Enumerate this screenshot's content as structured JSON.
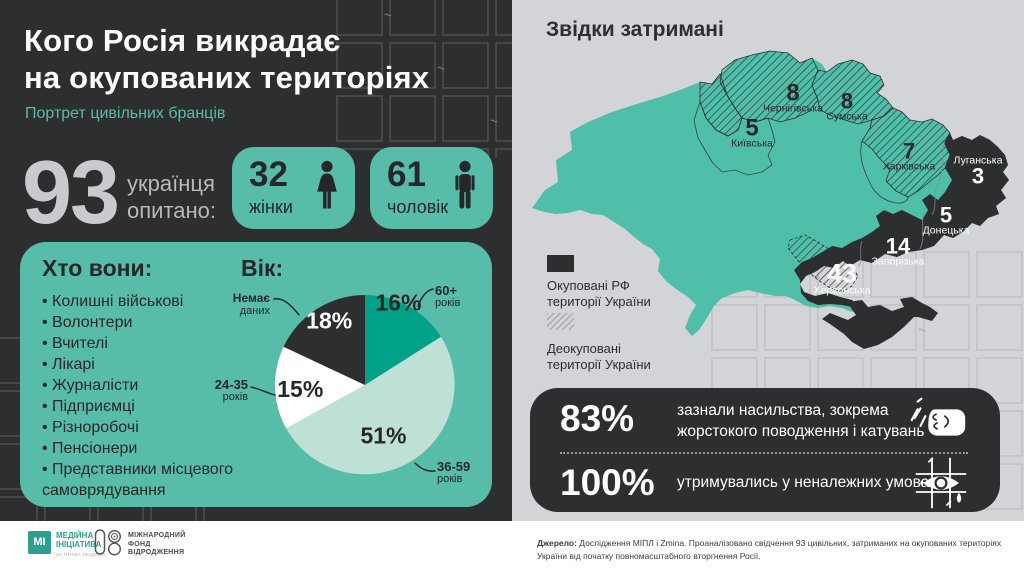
{
  "left_panel": {
    "title_line1": "Кого Росія викрадає",
    "title_line2": "на окупованих територіях",
    "subtitle": "Портрет цивільних бранців",
    "surveyed": {
      "number": "93",
      "caption_line1": "українця",
      "caption_line2": "опитано:"
    },
    "women": {
      "count": "32",
      "label": "жінки"
    },
    "men": {
      "count": "61",
      "label": "чоловік"
    },
    "who_title": "Хто вони:",
    "who_items": [
      "Колишні військові",
      "Волонтери",
      "Вчителі",
      "Лікарі",
      "Журналісти",
      "Підприємці",
      "Різноробочі",
      "Пенсіонери",
      "Представники місцевого самоврядування"
    ],
    "age_title": "Вік:"
  },
  "chart_data": {
    "type": "pie",
    "title": "Вік:",
    "unit": "%",
    "direction": "clockwise",
    "start_angle_deg": -90,
    "slices": [
      {
        "label_line1": "60+",
        "label_line2": "років",
        "label": "60+ років",
        "value": 16,
        "color": "#00a187",
        "text_color": "#25272a"
      },
      {
        "label_line1": "36-59",
        "label_line2": "років",
        "label": "36-59 років",
        "value": 51,
        "color": "#bfe0d5",
        "text_color": "#25272a"
      },
      {
        "label_line1": "24-35",
        "label_line2": "років",
        "label": "24-35 років",
        "value": 15,
        "color": "#ffffff",
        "text_color": "#25272a"
      },
      {
        "label_line1": "Немає",
        "label_line2": "даних",
        "label": "Немає даних",
        "value": 18,
        "color": "#2d2e30",
        "text_color": "#ffffff"
      }
    ]
  },
  "map": {
    "title": "Звідки затримані",
    "regions": [
      {
        "name": "Київська",
        "value": "5"
      },
      {
        "name": "Чернігівська",
        "value": "8"
      },
      {
        "name": "Сумська",
        "value": "8"
      },
      {
        "name": "Харківська",
        "value": "7"
      },
      {
        "name": "Луганська",
        "value": "3"
      },
      {
        "name": "Донецька",
        "value": "5"
      },
      {
        "name": "Запорізька",
        "value": "14"
      },
      {
        "name": "Херсонська",
        "value": "43"
      }
    ],
    "legend": [
      {
        "line1": "Окуповані РФ",
        "line2": "території України"
      },
      {
        "line1": "Деокуповані",
        "line2": "території України"
      }
    ]
  },
  "stats": [
    {
      "value": "83%",
      "line1": "зазнали насильства, зокрема",
      "line2": "жорстокого поводження і катувань"
    },
    {
      "value": "100%",
      "line1": "утримувались у неналежних умовах",
      "line2": ""
    }
  ],
  "footer": {
    "logo_mi": {
      "initials": "МІ",
      "line1": "МЕДІЙНА",
      "line2": "ІНІЦІАТИВА",
      "line3": "ЗА ПРАВА ЛЮДИНИ"
    },
    "logo_irf": {
      "line1": "МІЖНАРОДНИЙ",
      "line2": "ФОНД",
      "line3": "ВІДРОДЖЕННЯ"
    },
    "source_label": "Джерело:",
    "source_line1": " Дослідження МІПЛ і Zmina. Проаналізовано свідчення 93 цивільних, затриманих на окупованих територіях",
    "source_line2": "України від початку повномасштабного вторгнення Росії."
  },
  "colors": {
    "panel_dark": "#2d2e30",
    "panel_light": "#d3d4d8",
    "teal": "#57bda9",
    "map_teal": "#50bfa9",
    "pie_dark_teal": "#00a187",
    "pie_pale": "#bfe0d5",
    "occupied_black": "#2d2e30",
    "big_number_gray": "#c9cacd"
  }
}
